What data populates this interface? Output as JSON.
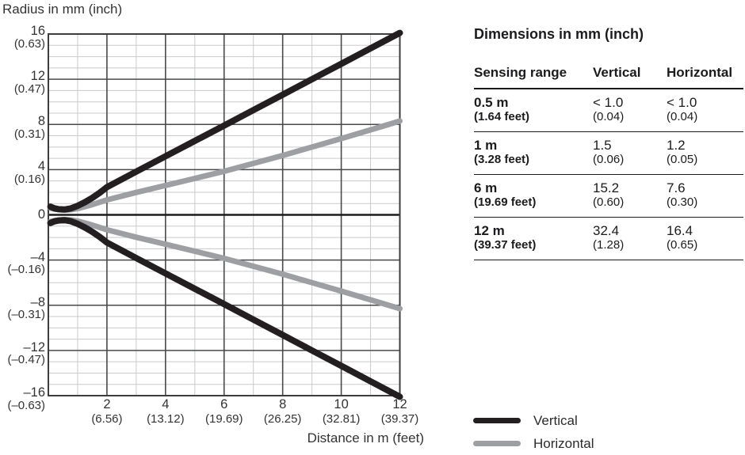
{
  "figure": {
    "y_axis_title": "Radius in mm (inch)",
    "x_axis_title": "Distance in m (feet)"
  },
  "chart_data": {
    "type": "line",
    "title": "",
    "xlabel": "Distance in m (feet)",
    "ylabel": "Radius in mm (inch)",
    "grid": true,
    "legend_position": "bottom-right",
    "x_axis": {
      "range": [
        0,
        12
      ],
      "major_step": 2,
      "minor_step": 1,
      "ticks": [
        {
          "value": 2,
          "label": "2",
          "sub": "(6.56)"
        },
        {
          "value": 4,
          "label": "4",
          "sub": "(13.12)"
        },
        {
          "value": 6,
          "label": "6",
          "sub": "(19.69)"
        },
        {
          "value": 8,
          "label": "8",
          "sub": "(26.25)"
        },
        {
          "value": 10,
          "label": "10",
          "sub": "(32.81)"
        },
        {
          "value": 12,
          "label": "12",
          "sub": "(39.37)"
        }
      ]
    },
    "y_axis": {
      "range": [
        -16,
        16
      ],
      "major_step": 4,
      "minor_step": 1,
      "ticks": [
        {
          "value": 16,
          "label": "16",
          "sub": "(0.63)"
        },
        {
          "value": 12,
          "label": "12",
          "sub": "(0.47)"
        },
        {
          "value": 8,
          "label": "8",
          "sub": "(0.31)"
        },
        {
          "value": 4,
          "label": "4",
          "sub": "(0.16)"
        },
        {
          "value": 0,
          "label": "0"
        },
        {
          "value": -4,
          "label": "–4",
          "sub": "(–0.16)"
        },
        {
          "value": -8,
          "label": "–8",
          "sub": "(–0.31)"
        },
        {
          "value": -12,
          "label": "–12",
          "sub": "(–0.47)"
        },
        {
          "value": -16,
          "label": "–16",
          "sub": "(–0.63)"
        }
      ]
    },
    "series": [
      {
        "name": "Vertical",
        "color": "#231f20",
        "stroke_width": 8,
        "mirrored": true,
        "points": [
          [
            0.07,
            0.72
          ],
          [
            0.2,
            0.58
          ],
          [
            0.35,
            0.5
          ],
          [
            0.55,
            0.47
          ],
          [
            0.75,
            0.55
          ],
          [
            1,
            0.8
          ],
          [
            1.25,
            1.12
          ],
          [
            1.5,
            1.5
          ],
          [
            1.75,
            1.95
          ],
          [
            2,
            2.45
          ],
          [
            3,
            3.82
          ],
          [
            4,
            5.18
          ],
          [
            5,
            6.54
          ],
          [
            6,
            7.9
          ],
          [
            7,
            9.27
          ],
          [
            8,
            10.63
          ],
          [
            9,
            12.0
          ],
          [
            10,
            13.36
          ],
          [
            11,
            14.73
          ],
          [
            12,
            16.1
          ]
        ]
      },
      {
        "name": "Horizontal",
        "color": "#9d9fa2",
        "stroke_width": 7,
        "mirrored": true,
        "points": [
          [
            0.07,
            0.6
          ],
          [
            0.25,
            0.5
          ],
          [
            0.45,
            0.44
          ],
          [
            0.65,
            0.43
          ],
          [
            0.85,
            0.48
          ],
          [
            1,
            0.55
          ],
          [
            1.5,
            0.9
          ],
          [
            2,
            1.32
          ],
          [
            3,
            1.98
          ],
          [
            4,
            2.6
          ],
          [
            5,
            3.22
          ],
          [
            6,
            3.85
          ],
          [
            7,
            4.55
          ],
          [
            8,
            5.25
          ],
          [
            9,
            6.0
          ],
          [
            10,
            6.75
          ],
          [
            11,
            7.52
          ],
          [
            12,
            8.3
          ]
        ]
      }
    ]
  },
  "table": {
    "title": "Dimensions in mm (inch)",
    "columns": [
      "Sensing range",
      "Vertical",
      "Horizontal"
    ],
    "rows": [
      {
        "range": "0.5 m",
        "range_feet": "(1.64 feet)",
        "vertical": "< 1.0",
        "vertical_inch": "(0.04)",
        "horizontal": "< 1.0",
        "horizontal_inch": "(0.04)"
      },
      {
        "range": "1 m",
        "range_feet": "(3.28 feet)",
        "vertical": "1.5",
        "vertical_inch": "(0.06)",
        "horizontal": "1.2",
        "horizontal_inch": "(0.05)"
      },
      {
        "range": "6 m",
        "range_feet": "(19.69 feet)",
        "vertical": "15.2",
        "vertical_inch": "(0.60)",
        "horizontal": "7.6",
        "horizontal_inch": "(0.30)"
      },
      {
        "range": "12 m",
        "range_feet": "(39.37 feet)",
        "vertical": "32.4",
        "vertical_inch": "(1.28)",
        "horizontal": "16.4",
        "horizontal_inch": "(0.65)"
      }
    ]
  },
  "legend": {
    "items": [
      {
        "label": "Vertical",
        "color": "#231f20"
      },
      {
        "label": "Horizontal",
        "color": "#9d9fa2"
      }
    ]
  },
  "colors": {
    "grid_minor": "#c9cacc",
    "grid_major": "#48494b",
    "zero_line": "#1c1c1e",
    "border": "#3c3d3f"
  }
}
